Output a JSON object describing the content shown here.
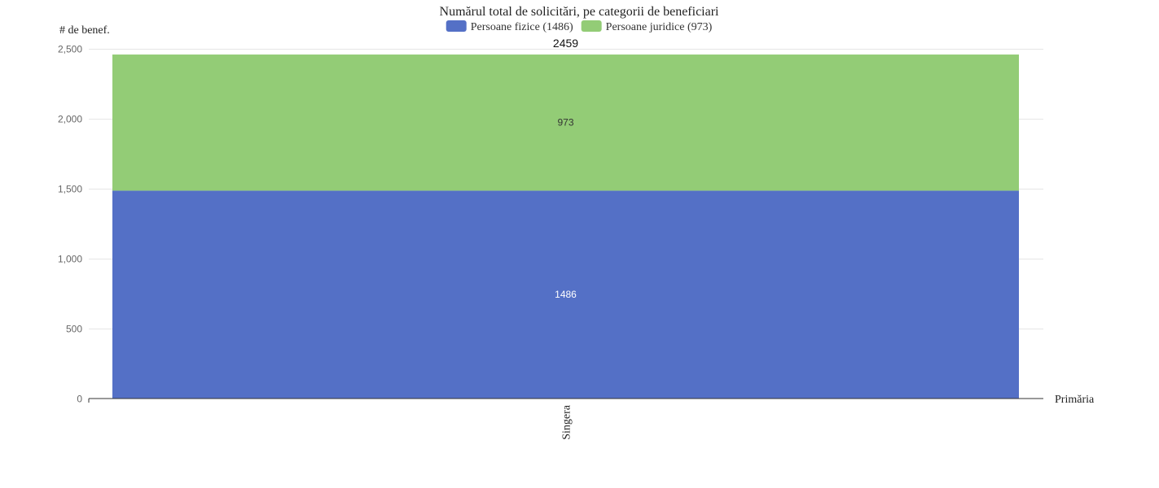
{
  "chart_data": {
    "type": "bar",
    "stacked": true,
    "title": "Numărul total de solicitări, pe categorii de beneficiari",
    "ylabel": "# de benef.",
    "xlabel": "Primăria",
    "categories": [
      "Singera"
    ],
    "series": [
      {
        "name": "Persoane fizice (1486)",
        "values": [
          1486
        ],
        "color": "#5470c6",
        "label_color": "#ffffff"
      },
      {
        "name": "Persoane juridice (973)",
        "values": [
          973
        ],
        "color": "#93cc76",
        "label_color": "#333333"
      }
    ],
    "totals": [
      2459
    ],
    "ylim": [
      0,
      2500
    ],
    "yticks": [
      0,
      500,
      1000,
      1500,
      2000,
      2500
    ],
    "ytick_labels": [
      "0",
      "500",
      "1,000",
      "1,500",
      "2,000",
      "2,500"
    ],
    "grid": true,
    "legend_position": "top-center"
  }
}
